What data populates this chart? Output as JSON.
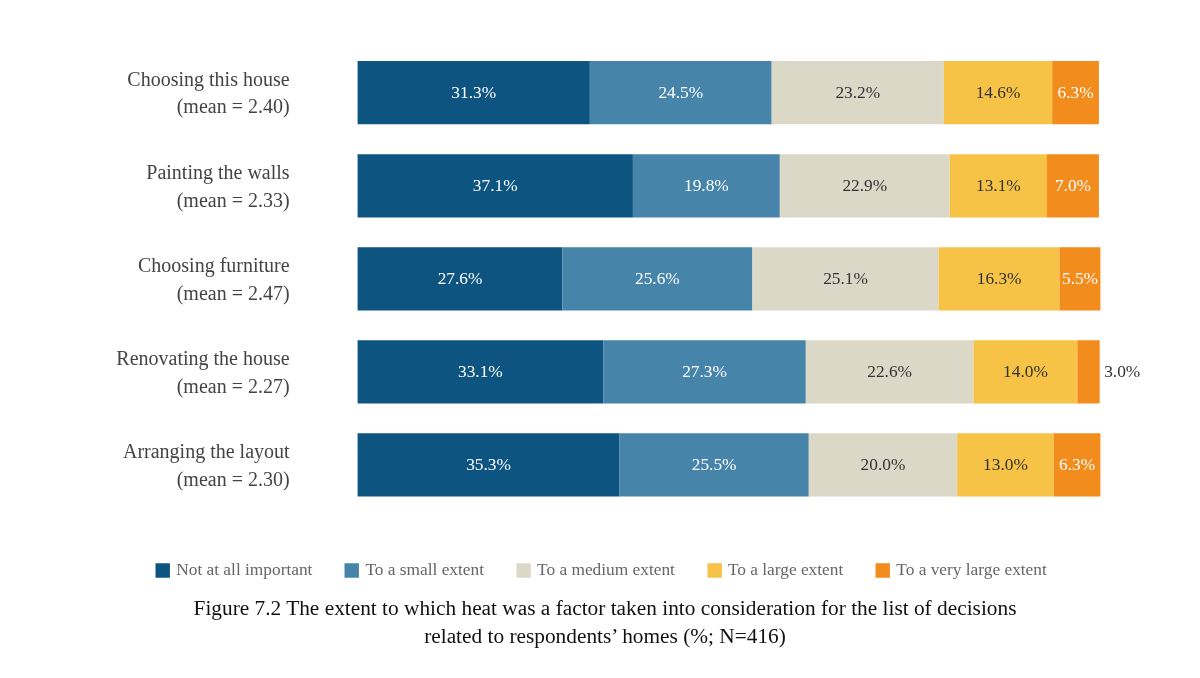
{
  "chart_data": {
    "type": "bar",
    "orientation": "horizontal",
    "stacked": true,
    "title": "Figure 7.2 The extent to which heat was a factor taken into consideration for the list of decisions related to respondents’ homes (%; N=416)",
    "categories": [
      "Choosing this house (mean = 2.40)",
      "Painting the walls (mean = 2.33)",
      "Choosing furniture (mean = 2.47)",
      "Renovating the house (mean = 2.27)",
      "Arranging the layout (mean = 2.30)"
    ],
    "series": [
      {
        "name": "Not at all important",
        "color": "#0d5481",
        "values": [
          31.3,
          37.1,
          27.6,
          33.1,
          35.3
        ],
        "value_labels": [
          "31.3%",
          "37.1%",
          "27.6%",
          "33.1%",
          "35.3%"
        ]
      },
      {
        "name": "To a small extent",
        "color": "#4684a9",
        "values": [
          24.5,
          19.8,
          25.6,
          27.3,
          25.5
        ],
        "value_labels": [
          "24.5%",
          "19.8%",
          "25.6%",
          "27.3%",
          "25.5%"
        ]
      },
      {
        "name": "To a medium extent",
        "color": "#dcd8c8",
        "values": [
          23.2,
          22.9,
          25.1,
          22.6,
          20.0
        ],
        "value_labels": [
          "23.2%",
          "22.9%",
          "25.1%",
          "22.6%",
          "20.0%"
        ]
      },
      {
        "name": "To a large extent",
        "color": "#f6c346",
        "values": [
          14.6,
          13.1,
          16.3,
          14.0,
          13.0
        ],
        "value_labels": [
          "14.6%",
          "13.1%",
          "16.3%",
          "14.0%",
          "13.0%"
        ]
      },
      {
        "name": "To a very large extent",
        "color": "#f28c1c",
        "values": [
          6.3,
          7.0,
          5.5,
          3.0,
          6.3
        ],
        "value_labels": [
          "6.3%",
          "7.0%",
          "5.5%",
          "3.0%",
          "6.3%"
        ]
      }
    ],
    "tick_labels": "y",
    "legend": "bottom"
  }
}
